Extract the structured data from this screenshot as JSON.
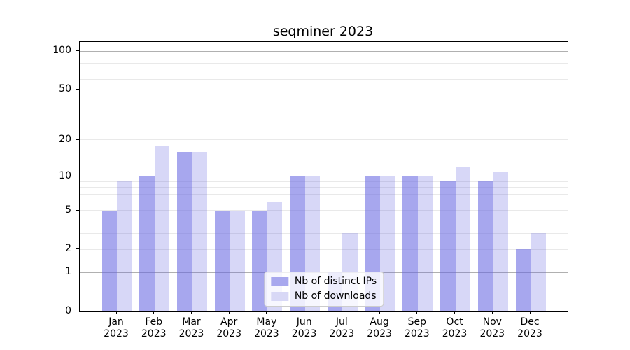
{
  "chart_data": {
    "type": "bar",
    "title": "seqminer 2023",
    "categories": [
      "Jan\n2023",
      "Feb\n2023",
      "Mar\n2023",
      "Apr\n2023",
      "May\n2023",
      "Jun\n2023",
      "Jul\n2023",
      "Aug\n2023",
      "Sep\n2023",
      "Oct\n2023",
      "Nov\n2023",
      "Dec\n2023"
    ],
    "series": [
      {
        "name": "Nb of distinct IPs",
        "values": [
          5,
          10,
          16,
          5,
          5,
          10,
          1,
          10,
          10,
          9,
          9,
          2
        ],
        "base_color": "#6464e1",
        "alpha": 0.57,
        "legend_color": "#a8a8ee"
      },
      {
        "name": "Nb of downloads",
        "values": [
          9,
          18,
          16,
          5,
          6,
          10,
          3,
          10,
          10,
          12,
          11,
          3
        ],
        "base_color": "#6464e1",
        "alpha": 0.26,
        "legend_color": "#d8d8f6"
      }
    ],
    "yscale": "log1p",
    "ylim": [
      0,
      117.8
    ],
    "yticks": [
      0,
      1,
      2,
      5,
      10,
      20,
      50,
      100
    ],
    "major_gridlines": [
      1,
      10,
      100
    ],
    "minor_gridlines": [
      2,
      3,
      4,
      5,
      6,
      7,
      8,
      9,
      20,
      30,
      40,
      50,
      60,
      70,
      80,
      90
    ],
    "xlabel": "",
    "ylabel": "",
    "grid": true,
    "legend_position": "lower center",
    "colors": {
      "major_grid": "#b0b0b0",
      "minor_grid": "#e9e9e9",
      "spine": "#000000",
      "background": "#ffffff"
    }
  }
}
